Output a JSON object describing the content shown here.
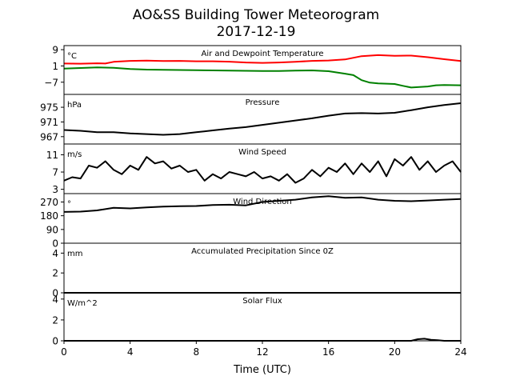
{
  "title_line1": "AO&SS Building Tower Meteorogram",
  "title_line2": "2017-12-19",
  "xlabel": "Time (UTC)",
  "x_ticks": [
    "0",
    "4",
    "8",
    "12",
    "16",
    "20",
    "24"
  ],
  "chart_data": [
    {
      "type": "line",
      "title": "Air and Dewpoint Temperature",
      "unit": "°C",
      "ylim": [
        -13,
        11
      ],
      "yticks": [
        9,
        1,
        -7
      ],
      "ytick_labels": [
        "9",
        "1",
        "−7"
      ],
      "series": [
        {
          "color": "#ff0000",
          "x": [
            0,
            1,
            2,
            2.5,
            3,
            4,
            5,
            6,
            7,
            8,
            9,
            10,
            11,
            12,
            13,
            14,
            15,
            16,
            17,
            18,
            19,
            20,
            21,
            22,
            23,
            24
          ],
          "y": [
            2.2,
            2.1,
            2.3,
            2.2,
            3.0,
            3.5,
            3.6,
            3.4,
            3.5,
            3.3,
            3.3,
            3.1,
            2.7,
            2.5,
            2.7,
            3.0,
            3.5,
            3.7,
            4.2,
            5.8,
            6.3,
            6.0,
            6.1,
            5.3,
            4.3,
            3.4
          ]
        },
        {
          "color": "#008000",
          "x": [
            0,
            1,
            2,
            3,
            4,
            5,
            6,
            7,
            8,
            9,
            10,
            11,
            12,
            13,
            14,
            15,
            16,
            17,
            17.5,
            18,
            18.5,
            19,
            20,
            20.5,
            21,
            22,
            22.5,
            23,
            24
          ],
          "y": [
            -0.3,
            0.0,
            0.3,
            0.1,
            -0.5,
            -0.8,
            -0.9,
            -1.0,
            -1.1,
            -1.2,
            -1.3,
            -1.4,
            -1.5,
            -1.5,
            -1.3,
            -1.2,
            -1.6,
            -2.8,
            -3.5,
            -6.0,
            -7.2,
            -7.6,
            -7.9,
            -8.8,
            -9.6,
            -9.1,
            -8.5,
            -8.4,
            -8.5
          ]
        }
      ]
    },
    {
      "type": "line",
      "title": "Pressure",
      "unit": "hPa",
      "ylim": [
        965,
        978.5
      ],
      "yticks": [
        975,
        971,
        967
      ],
      "ytick_labels": [
        "975",
        "971",
        "967"
      ],
      "series": [
        {
          "color": "#000000",
          "x": [
            0,
            1,
            2,
            3,
            4,
            5,
            6,
            7,
            8,
            9,
            10,
            11,
            12,
            13,
            14,
            15,
            16,
            17,
            18,
            19,
            20,
            21,
            22,
            23,
            24
          ],
          "y": [
            968.8,
            968.6,
            968.2,
            968.2,
            967.9,
            967.7,
            967.5,
            967.7,
            968.2,
            968.7,
            969.2,
            969.6,
            970.2,
            970.8,
            971.4,
            972.0,
            972.7,
            973.3,
            973.4,
            973.3,
            973.5,
            974.2,
            975.0,
            975.6,
            976.1
          ]
        }
      ]
    },
    {
      "type": "line",
      "title": "Wind Speed",
      "unit": "m/s",
      "ylim": [
        2,
        13.5
      ],
      "yticks": [
        11,
        7,
        3
      ],
      "ytick_labels": [
        "11",
        "7",
        "3"
      ],
      "series": [
        {
          "color": "#000000",
          "x": [
            0,
            0.5,
            1,
            1.5,
            2,
            2.5,
            3,
            3.5,
            4,
            4.5,
            5,
            5.5,
            6,
            6.5,
            7,
            7.5,
            8,
            8.5,
            9,
            9.5,
            10,
            10.5,
            11,
            11.5,
            12,
            12.5,
            13,
            13.5,
            14,
            14.5,
            15,
            15.5,
            16,
            16.5,
            17,
            17.5,
            18,
            18.5,
            19,
            19.5,
            20,
            20.5,
            21,
            21.5,
            22,
            22.5,
            23,
            23.5,
            24
          ],
          "y": [
            5.0,
            5.8,
            5.5,
            8.5,
            8.0,
            9.5,
            7.5,
            6.5,
            8.5,
            7.5,
            10.5,
            9.0,
            9.5,
            7.8,
            8.5,
            7.0,
            7.5,
            5.0,
            6.5,
            5.5,
            7.0,
            6.5,
            6.0,
            7.0,
            5.5,
            6.0,
            5.0,
            6.5,
            4.5,
            5.5,
            7.5,
            6.0,
            8.0,
            7.0,
            9.0,
            6.5,
            9.0,
            7.0,
            9.5,
            6.0,
            10.0,
            8.5,
            10.5,
            7.5,
            9.5,
            7.0,
            8.5,
            9.5,
            7.0
          ]
        }
      ]
    },
    {
      "type": "line",
      "title": "Wind Direction",
      "unit": "°",
      "ylim": [
        0,
        325
      ],
      "yticks": [
        270,
        180,
        90,
        0
      ],
      "ytick_labels": [
        "270",
        "180",
        "90",
        "0"
      ],
      "series": [
        {
          "color": "#000000",
          "x": [
            0,
            1,
            2,
            3,
            4,
            5,
            6,
            7,
            8,
            9,
            10,
            11,
            12,
            13,
            14,
            15,
            16,
            17,
            18,
            19,
            20,
            21,
            22,
            23,
            24
          ],
          "y": [
            205,
            207,
            215,
            232,
            228,
            235,
            240,
            242,
            244,
            250,
            252,
            248,
            270,
            278,
            285,
            300,
            308,
            298,
            300,
            285,
            278,
            275,
            280,
            285,
            290
          ]
        }
      ]
    },
    {
      "type": "line",
      "title": "Accumulated Precipitation Since 0Z",
      "unit": "mm",
      "ylim": [
        0,
        5
      ],
      "yticks": [
        4,
        2,
        0
      ],
      "ytick_labels": [
        "4",
        "2",
        "0"
      ],
      "series": [
        {
          "color": "#000000",
          "x": [
            0,
            24
          ],
          "y": [
            0,
            0
          ]
        }
      ]
    },
    {
      "type": "line",
      "title": "Solar Flux",
      "unit": "W/m^2",
      "ylim": [
        0,
        4.6
      ],
      "yticks": [
        4,
        2,
        0
      ],
      "ytick_labels": [
        "4",
        "2",
        "0"
      ],
      "series": [
        {
          "color": "#000000",
          "x": [
            0,
            21,
            21.4,
            21.8,
            22.2,
            22.6,
            23,
            24
          ],
          "y": [
            0,
            0,
            0.15,
            0.2,
            0.1,
            0.05,
            0,
            0
          ]
        }
      ]
    }
  ]
}
